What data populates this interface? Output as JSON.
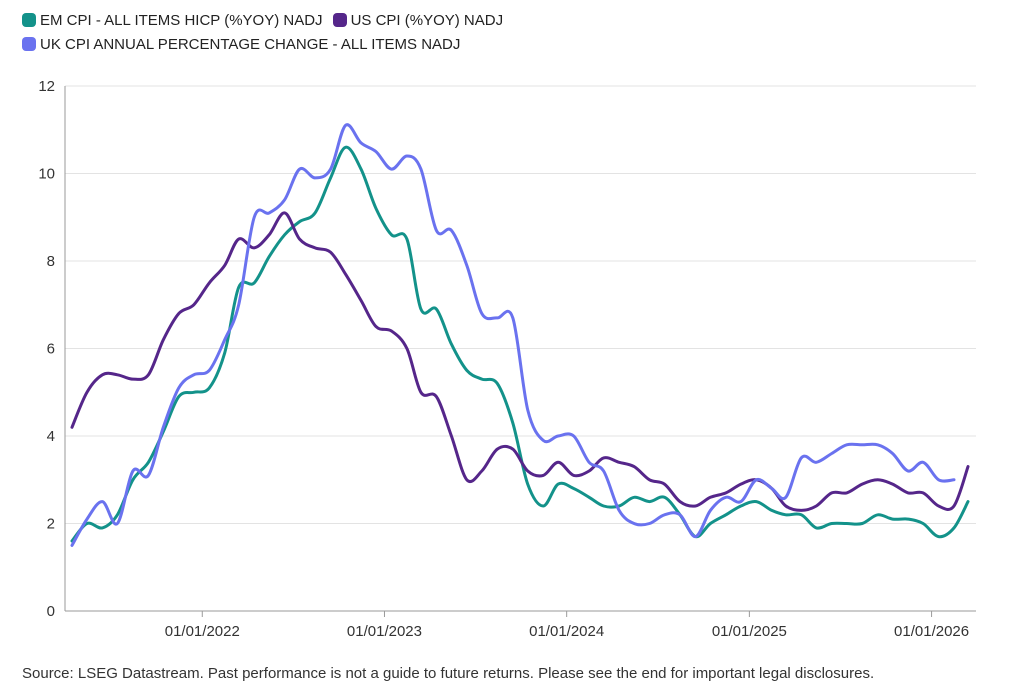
{
  "chart_data": {
    "type": "line",
    "title": "",
    "xlabel": "",
    "ylabel": "",
    "x_range": [
      "2021-04-01",
      "2026-03-31"
    ],
    "ylim": [
      0,
      12
    ],
    "y_ticks": [
      0,
      2,
      4,
      6,
      8,
      10,
      12
    ],
    "x_ticks": [
      {
        "date": "2022-01-01",
        "label": "01/01/2022"
      },
      {
        "date": "2023-01-01",
        "label": "01/01/2023"
      },
      {
        "date": "2024-01-01",
        "label": "01/01/2024"
      },
      {
        "date": "2025-01-01",
        "label": "01/01/2025"
      },
      {
        "date": "2026-01-01",
        "label": "01/01/2026"
      }
    ],
    "grid": "horizontal",
    "legend_position": "top-left",
    "source": "Source: LSEG Datastream. Past performance is not a guide to future returns. Please see the end for important legal disclosures.",
    "series": [
      {
        "name": "EM CPI - ALL ITEMS HICP (%YOY) NADJ",
        "color": "#13928a",
        "points": [
          [
            "2021-04-15",
            1.6
          ],
          [
            "2021-05-15",
            2.0
          ],
          [
            "2021-06-15",
            1.9
          ],
          [
            "2021-07-15",
            2.2
          ],
          [
            "2021-08-15",
            3.0
          ],
          [
            "2021-09-15",
            3.4
          ],
          [
            "2021-10-15",
            4.1
          ],
          [
            "2021-11-15",
            4.9
          ],
          [
            "2021-12-15",
            5.0
          ],
          [
            "2022-01-15",
            5.1
          ],
          [
            "2022-02-15",
            5.9
          ],
          [
            "2022-03-15",
            7.4
          ],
          [
            "2022-04-15",
            7.5
          ],
          [
            "2022-05-15",
            8.1
          ],
          [
            "2022-06-15",
            8.6
          ],
          [
            "2022-07-15",
            8.9
          ],
          [
            "2022-08-15",
            9.1
          ],
          [
            "2022-09-15",
            9.9
          ],
          [
            "2022-10-15",
            10.6
          ],
          [
            "2022-11-15",
            10.1
          ],
          [
            "2022-12-15",
            9.2
          ],
          [
            "2023-01-15",
            8.6
          ],
          [
            "2023-02-15",
            8.5
          ],
          [
            "2023-03-15",
            6.9
          ],
          [
            "2023-04-15",
            6.9
          ],
          [
            "2023-05-15",
            6.1
          ],
          [
            "2023-06-15",
            5.5
          ],
          [
            "2023-07-15",
            5.3
          ],
          [
            "2023-08-15",
            5.2
          ],
          [
            "2023-09-15",
            4.3
          ],
          [
            "2023-10-15",
            2.9
          ],
          [
            "2023-11-15",
            2.4
          ],
          [
            "2023-12-15",
            2.9
          ],
          [
            "2024-01-15",
            2.8
          ],
          [
            "2024-02-15",
            2.6
          ],
          [
            "2024-03-15",
            2.4
          ],
          [
            "2024-04-15",
            2.4
          ],
          [
            "2024-05-15",
            2.6
          ],
          [
            "2024-06-15",
            2.5
          ],
          [
            "2024-07-15",
            2.6
          ],
          [
            "2024-08-15",
            2.2
          ],
          [
            "2024-09-15",
            1.7
          ],
          [
            "2024-10-15",
            2.0
          ],
          [
            "2024-11-15",
            2.2
          ],
          [
            "2024-12-15",
            2.4
          ],
          [
            "2025-01-15",
            2.5
          ],
          [
            "2025-02-15",
            2.3
          ],
          [
            "2025-03-15",
            2.2
          ],
          [
            "2025-04-15",
            2.2
          ],
          [
            "2025-05-15",
            1.9
          ],
          [
            "2025-06-15",
            2.0
          ],
          [
            "2025-07-15",
            2.0
          ],
          [
            "2025-08-15",
            2.0
          ],
          [
            "2025-09-15",
            2.2
          ],
          [
            "2025-10-15",
            2.1
          ],
          [
            "2025-11-15",
            2.1
          ],
          [
            "2025-12-15",
            2.0
          ],
          [
            "2026-01-15",
            1.7
          ],
          [
            "2026-02-15",
            1.9
          ],
          [
            "2026-03-15",
            2.5
          ]
        ]
      },
      {
        "name": "US CPI (%YOY) NADJ",
        "color": "#55268a",
        "points": [
          [
            "2021-04-15",
            4.2
          ],
          [
            "2021-05-15",
            5.0
          ],
          [
            "2021-06-15",
            5.4
          ],
          [
            "2021-07-15",
            5.4
          ],
          [
            "2021-08-15",
            5.3
          ],
          [
            "2021-09-15",
            5.4
          ],
          [
            "2021-10-15",
            6.2
          ],
          [
            "2021-11-15",
            6.8
          ],
          [
            "2021-12-15",
            7.0
          ],
          [
            "2022-01-15",
            7.5
          ],
          [
            "2022-02-15",
            7.9
          ],
          [
            "2022-03-15",
            8.5
          ],
          [
            "2022-04-15",
            8.3
          ],
          [
            "2022-05-15",
            8.6
          ],
          [
            "2022-06-15",
            9.1
          ],
          [
            "2022-07-15",
            8.5
          ],
          [
            "2022-08-15",
            8.3
          ],
          [
            "2022-09-15",
            8.2
          ],
          [
            "2022-10-15",
            7.7
          ],
          [
            "2022-11-15",
            7.1
          ],
          [
            "2022-12-15",
            6.5
          ],
          [
            "2023-01-15",
            6.4
          ],
          [
            "2023-02-15",
            6.0
          ],
          [
            "2023-03-15",
            5.0
          ],
          [
            "2023-04-15",
            4.9
          ],
          [
            "2023-05-15",
            4.0
          ],
          [
            "2023-06-15",
            3.0
          ],
          [
            "2023-07-15",
            3.2
          ],
          [
            "2023-08-15",
            3.7
          ],
          [
            "2023-09-15",
            3.7
          ],
          [
            "2023-10-15",
            3.2
          ],
          [
            "2023-11-15",
            3.1
          ],
          [
            "2023-12-15",
            3.4
          ],
          [
            "2024-01-15",
            3.1
          ],
          [
            "2024-02-15",
            3.2
          ],
          [
            "2024-03-15",
            3.5
          ],
          [
            "2024-04-15",
            3.4
          ],
          [
            "2024-05-15",
            3.3
          ],
          [
            "2024-06-15",
            3.0
          ],
          [
            "2024-07-15",
            2.9
          ],
          [
            "2024-08-15",
            2.5
          ],
          [
            "2024-09-15",
            2.4
          ],
          [
            "2024-10-15",
            2.6
          ],
          [
            "2024-11-15",
            2.7
          ],
          [
            "2024-12-15",
            2.9
          ],
          [
            "2025-01-15",
            3.0
          ],
          [
            "2025-02-15",
            2.8
          ],
          [
            "2025-03-15",
            2.4
          ],
          [
            "2025-04-15",
            2.3
          ],
          [
            "2025-05-15",
            2.4
          ],
          [
            "2025-06-15",
            2.7
          ],
          [
            "2025-07-15",
            2.7
          ],
          [
            "2025-08-15",
            2.9
          ],
          [
            "2025-09-15",
            3.0
          ],
          [
            "2025-10-15",
            2.9
          ],
          [
            "2025-11-15",
            2.7
          ],
          [
            "2025-12-15",
            2.7
          ],
          [
            "2026-01-15",
            2.4
          ],
          [
            "2026-02-15",
            2.4
          ],
          [
            "2026-03-15",
            3.3
          ]
        ]
      },
      {
        "name": "UK CPI ANNUAL PERCENTAGE CHANGE - ALL ITEMS NADJ",
        "color": "#6a72ef",
        "points": [
          [
            "2021-04-15",
            1.5
          ],
          [
            "2021-05-15",
            2.1
          ],
          [
            "2021-06-15",
            2.5
          ],
          [
            "2021-07-15",
            2.0
          ],
          [
            "2021-08-15",
            3.2
          ],
          [
            "2021-09-15",
            3.1
          ],
          [
            "2021-10-15",
            4.2
          ],
          [
            "2021-11-15",
            5.1
          ],
          [
            "2021-12-15",
            5.4
          ],
          [
            "2022-01-15",
            5.5
          ],
          [
            "2022-02-15",
            6.2
          ],
          [
            "2022-03-15",
            7.0
          ],
          [
            "2022-04-15",
            9.0
          ],
          [
            "2022-05-15",
            9.1
          ],
          [
            "2022-06-15",
            9.4
          ],
          [
            "2022-07-15",
            10.1
          ],
          [
            "2022-08-15",
            9.9
          ],
          [
            "2022-09-15",
            10.1
          ],
          [
            "2022-10-15",
            11.1
          ],
          [
            "2022-11-15",
            10.7
          ],
          [
            "2022-12-15",
            10.5
          ],
          [
            "2023-01-15",
            10.1
          ],
          [
            "2023-02-15",
            10.4
          ],
          [
            "2023-03-15",
            10.1
          ],
          [
            "2023-04-15",
            8.7
          ],
          [
            "2023-05-15",
            8.7
          ],
          [
            "2023-06-15",
            7.9
          ],
          [
            "2023-07-15",
            6.8
          ],
          [
            "2023-08-15",
            6.7
          ],
          [
            "2023-09-15",
            6.7
          ],
          [
            "2023-10-15",
            4.6
          ],
          [
            "2023-11-15",
            3.9
          ],
          [
            "2023-12-15",
            4.0
          ],
          [
            "2024-01-15",
            4.0
          ],
          [
            "2024-02-15",
            3.4
          ],
          [
            "2024-03-15",
            3.2
          ],
          [
            "2024-04-15",
            2.3
          ],
          [
            "2024-05-15",
            2.0
          ],
          [
            "2024-06-15",
            2.0
          ],
          [
            "2024-07-15",
            2.2
          ],
          [
            "2024-08-15",
            2.2
          ],
          [
            "2024-09-15",
            1.7
          ],
          [
            "2024-10-15",
            2.3
          ],
          [
            "2024-11-15",
            2.6
          ],
          [
            "2024-12-15",
            2.5
          ],
          [
            "2025-01-15",
            3.0
          ],
          [
            "2025-02-15",
            2.8
          ],
          [
            "2025-03-15",
            2.6
          ],
          [
            "2025-04-15",
            3.5
          ],
          [
            "2025-05-15",
            3.4
          ],
          [
            "2025-06-15",
            3.6
          ],
          [
            "2025-07-15",
            3.8
          ],
          [
            "2025-08-15",
            3.8
          ],
          [
            "2025-09-15",
            3.8
          ],
          [
            "2025-10-15",
            3.6
          ],
          [
            "2025-11-15",
            3.2
          ],
          [
            "2025-12-15",
            3.4
          ],
          [
            "2026-01-15",
            3.0
          ],
          [
            "2026-02-15",
            3.0
          ]
        ]
      }
    ]
  }
}
